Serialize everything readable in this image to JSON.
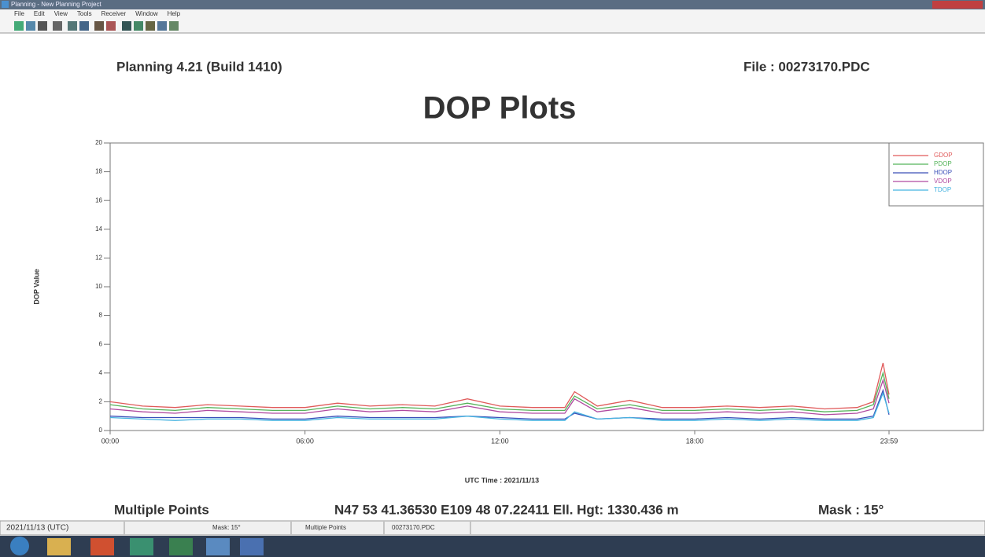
{
  "window": {
    "title": "Planning - New Planning Project",
    "menu": [
      "File",
      "Edit",
      "View",
      "Tools",
      "Receiver",
      "Window",
      "Help"
    ]
  },
  "header": {
    "app": "Planning 4.21 (Build 1410)",
    "file": "File : 00273170.PDC"
  },
  "chart_data": {
    "type": "line",
    "title": "DOP Plots",
    "y_label": "DOP Value",
    "x_label": "UTC Time : 2021/11/13",
    "x": [
      0,
      1,
      2,
      3,
      4,
      5,
      6,
      7,
      8,
      9,
      10,
      11,
      12,
      13,
      14,
      14.3,
      15,
      16,
      17,
      18,
      19,
      20,
      21,
      22,
      23,
      23.5,
      23.8,
      23.983
    ],
    "xlim": [
      0,
      23.983
    ],
    "xticks": [
      {
        "value": 0,
        "label": "00:00"
      },
      {
        "value": 6,
        "label": "06:00"
      },
      {
        "value": 12,
        "label": "12:00"
      },
      {
        "value": 18,
        "label": "18:00"
      },
      {
        "value": 23.983,
        "label": "23:59"
      }
    ],
    "ylim": [
      0,
      20
    ],
    "yticks": [
      0,
      2,
      4,
      6,
      8,
      10,
      12,
      14,
      16,
      18,
      20
    ],
    "grid": false,
    "legend": "upper right",
    "series": [
      {
        "name": "GDOP",
        "color": "#e05a5a",
        "values": [
          2.0,
          1.7,
          1.6,
          1.8,
          1.7,
          1.6,
          1.6,
          1.9,
          1.7,
          1.8,
          1.7,
          2.2,
          1.7,
          1.6,
          1.6,
          2.7,
          1.7,
          2.1,
          1.6,
          1.6,
          1.7,
          1.6,
          1.7,
          1.5,
          1.6,
          2.0,
          4.7,
          2.5
        ]
      },
      {
        "name": "PDOP",
        "color": "#55b35a",
        "values": [
          1.8,
          1.5,
          1.4,
          1.6,
          1.5,
          1.4,
          1.4,
          1.7,
          1.5,
          1.6,
          1.5,
          1.9,
          1.5,
          1.4,
          1.4,
          2.4,
          1.5,
          1.8,
          1.4,
          1.4,
          1.5,
          1.4,
          1.5,
          1.3,
          1.4,
          1.8,
          4.0,
          2.2
        ]
      },
      {
        "name": "HDOP",
        "color": "#3a4fb8",
        "values": [
          1.0,
          0.9,
          0.9,
          0.9,
          0.9,
          0.8,
          0.8,
          1.0,
          0.9,
          0.9,
          0.9,
          1.0,
          0.9,
          0.8,
          0.8,
          1.2,
          0.8,
          0.9,
          0.8,
          0.8,
          0.9,
          0.8,
          0.9,
          0.8,
          0.8,
          1.0,
          2.8,
          1.1
        ]
      },
      {
        "name": "VDOP",
        "color": "#b04aa0",
        "values": [
          1.5,
          1.3,
          1.2,
          1.4,
          1.3,
          1.2,
          1.2,
          1.5,
          1.3,
          1.4,
          1.3,
          1.7,
          1.3,
          1.2,
          1.2,
          2.2,
          1.3,
          1.6,
          1.2,
          1.2,
          1.3,
          1.2,
          1.3,
          1.1,
          1.2,
          1.5,
          3.5,
          1.9
        ]
      },
      {
        "name": "TDOP",
        "color": "#45b3e0",
        "values": [
          0.9,
          0.8,
          0.7,
          0.8,
          0.8,
          0.7,
          0.7,
          0.9,
          0.8,
          0.8,
          0.8,
          1.0,
          0.8,
          0.7,
          0.7,
          1.3,
          0.8,
          0.9,
          0.7,
          0.7,
          0.8,
          0.7,
          0.8,
          0.7,
          0.7,
          0.9,
          2.6,
          1.2
        ]
      }
    ]
  },
  "footer": {
    "points": "Multiple Points",
    "position": "N47 53 41.36530 E109 48 07.22411 Ell. Hgt: 1330.436 m",
    "mask": "Mask : 15°"
  },
  "status_bar": [
    "2021/11/13 (UTC)",
    "Mask: 15°",
    "Multiple Points",
    "00273170.PDC"
  ]
}
